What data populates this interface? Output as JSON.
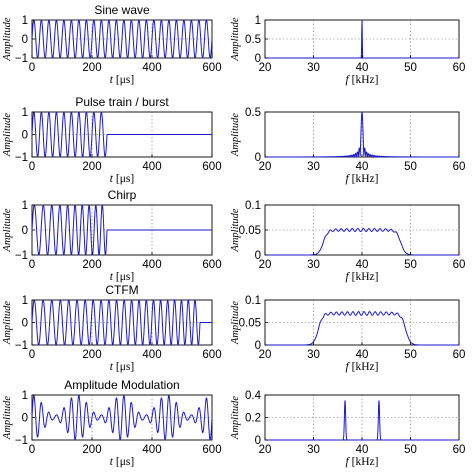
{
  "colors": {
    "trace": "#1a1ad0",
    "axes": "#000000",
    "grid": "#555555"
  },
  "chart_data": [
    {
      "type": "line",
      "column": "time",
      "title": "Sine wave",
      "signal": "sine",
      "cycles": 24,
      "xlabel_var": "t",
      "xlabel_unit": "[μs]",
      "ylabel": "Amplitude",
      "xlim": [
        0,
        600
      ],
      "ylim": [
        -1,
        1
      ],
      "xticks": [
        0,
        200,
        400,
        600
      ],
      "yticks": [
        -1,
        0,
        1
      ],
      "xtick_labels": [
        "0",
        "200",
        "400",
        "600"
      ],
      "ytick_labels": [
        "−1",
        "0",
        "1"
      ],
      "grid": true
    },
    {
      "type": "line",
      "column": "freq",
      "title": "",
      "spectrum": "sine_peak",
      "peak_x": 40,
      "peak_y": 1,
      "xlabel_var": "f",
      "xlabel_unit": "[kHz]",
      "ylabel": "Amplitude",
      "xlim": [
        20,
        60
      ],
      "ylim": [
        0,
        1
      ],
      "xticks": [
        20,
        30,
        40,
        50,
        60
      ],
      "yticks": [
        0,
        0.5,
        1
      ],
      "xtick_labels": [
        "20",
        "30",
        "40",
        "50",
        "60"
      ],
      "ytick_labels": [
        "0",
        "0.5",
        "1"
      ],
      "grid": true
    },
    {
      "type": "line",
      "column": "time",
      "title": "Pulse train / burst",
      "signal": "burst",
      "cycles": 10,
      "end_x": 250,
      "xlabel_var": "t",
      "xlabel_unit": "[μs]",
      "ylabel": "Amplitude",
      "xlim": [
        0,
        600
      ],
      "ylim": [
        -1,
        1
      ],
      "xticks": [
        0,
        200,
        400,
        600
      ],
      "yticks": [
        -1,
        0,
        1
      ],
      "xtick_labels": [
        "0",
        "200",
        "400",
        "600"
      ],
      "ytick_labels": [
        "−1",
        "0",
        "1"
      ],
      "grid": true
    },
    {
      "type": "line",
      "column": "freq",
      "title": "",
      "spectrum": "sinc_peak",
      "peak_x": 40,
      "peak_y": 0.5,
      "xlabel_var": "f",
      "xlabel_unit": "[kHz]",
      "ylabel": "Amplitude",
      "xlim": [
        20,
        60
      ],
      "ylim": [
        0,
        0.5
      ],
      "xticks": [
        20,
        30,
        40,
        50,
        60
      ],
      "yticks": [
        0,
        0.5
      ],
      "xtick_labels": [
        "20",
        "30",
        "40",
        "50",
        "60"
      ],
      "ytick_labels": [
        "0",
        "0.5"
      ],
      "grid": true
    },
    {
      "type": "line",
      "column": "time",
      "title": "Chirp",
      "signal": "chirp",
      "cycles": 10,
      "end_x": 250,
      "xlabel_var": "t",
      "xlabel_unit": "[μs]",
      "ylabel": "Amplitude",
      "xlim": [
        0,
        600
      ],
      "ylim": [
        -1,
        1
      ],
      "xticks": [
        0,
        200,
        400,
        600
      ],
      "yticks": [
        -1,
        0,
        1
      ],
      "xtick_labels": [
        "0",
        "200",
        "400",
        "600"
      ],
      "ytick_labels": [
        "−1",
        "0",
        "1"
      ],
      "grid": true
    },
    {
      "type": "line",
      "column": "freq",
      "title": "",
      "spectrum": "band",
      "band": [
        32,
        48
      ],
      "level": 0.05,
      "xlabel_var": "f",
      "xlabel_unit": "[kHz]",
      "ylabel": "Amplitude",
      "xlim": [
        20,
        60
      ],
      "ylim": [
        0,
        0.1
      ],
      "xticks": [
        20,
        30,
        40,
        50,
        60
      ],
      "yticks": [
        0,
        0.05,
        0.1
      ],
      "xtick_labels": [
        "20",
        "30",
        "40",
        "50",
        "60"
      ],
      "ytick_labels": [
        "0",
        "0.05",
        "0.1"
      ],
      "grid": true
    },
    {
      "type": "line",
      "column": "time",
      "title": "CTFM",
      "signal": "ctfm",
      "cycles": 22,
      "end_x": 560,
      "xlabel_var": "t",
      "xlabel_unit": "[μs]",
      "ylabel": "Amplitude",
      "xlim": [
        0,
        600
      ],
      "ylim": [
        -1,
        1
      ],
      "xticks": [
        0,
        200,
        400,
        600
      ],
      "yticks": [
        -1,
        0,
        1
      ],
      "xtick_labels": [
        "0",
        "200",
        "400",
        "600"
      ],
      "ytick_labels": [
        "−1",
        "0",
        "1"
      ],
      "grid": true
    },
    {
      "type": "line",
      "column": "freq",
      "title": "",
      "spectrum": "band",
      "band": [
        31,
        49
      ],
      "level": 0.07,
      "xlabel_var": "f",
      "xlabel_unit": "[kHz]",
      "ylabel": "Amplitude",
      "xlim": [
        20,
        60
      ],
      "ylim": [
        0,
        0.1
      ],
      "xticks": [
        20,
        30,
        40,
        50,
        60
      ],
      "yticks": [
        0,
        0.05,
        0.1
      ],
      "xtick_labels": [
        "20",
        "30",
        "40",
        "50",
        "60"
      ],
      "ytick_labels": [
        "0",
        "0.05",
        "0.1"
      ],
      "grid": true
    },
    {
      "type": "line",
      "column": "time",
      "title": "Amplitude Modulation",
      "signal": "am",
      "cycles": 24,
      "mod_cycles": 4,
      "xlabel_var": "t",
      "xlabel_unit": "[μs]",
      "ylabel": "Amplitude",
      "xlim": [
        0,
        600
      ],
      "ylim": [
        -1,
        1
      ],
      "xticks": [
        0,
        200,
        400,
        600
      ],
      "yticks": [
        -1,
        0,
        1
      ],
      "xtick_labels": [
        "0",
        "200",
        "400",
        "600"
      ],
      "ytick_labels": [
        "−1",
        "0",
        "1"
      ],
      "grid": true
    },
    {
      "type": "line",
      "column": "freq",
      "title": "",
      "spectrum": "two_peaks",
      "peaks_x": [
        36.5,
        43.5
      ],
      "peak_y": 0.35,
      "xlabel_var": "f",
      "xlabel_unit": "[kHz]",
      "ylabel": "Amplitude",
      "xlim": [
        20,
        60
      ],
      "ylim": [
        0,
        0.4
      ],
      "xticks": [
        20,
        30,
        40,
        50,
        60
      ],
      "yticks": [
        0,
        0.2,
        0.4
      ],
      "xtick_labels": [
        "20",
        "30",
        "40",
        "50",
        "60"
      ],
      "ytick_labels": [
        "0",
        "0.2",
        "0.4"
      ],
      "grid": true
    }
  ]
}
